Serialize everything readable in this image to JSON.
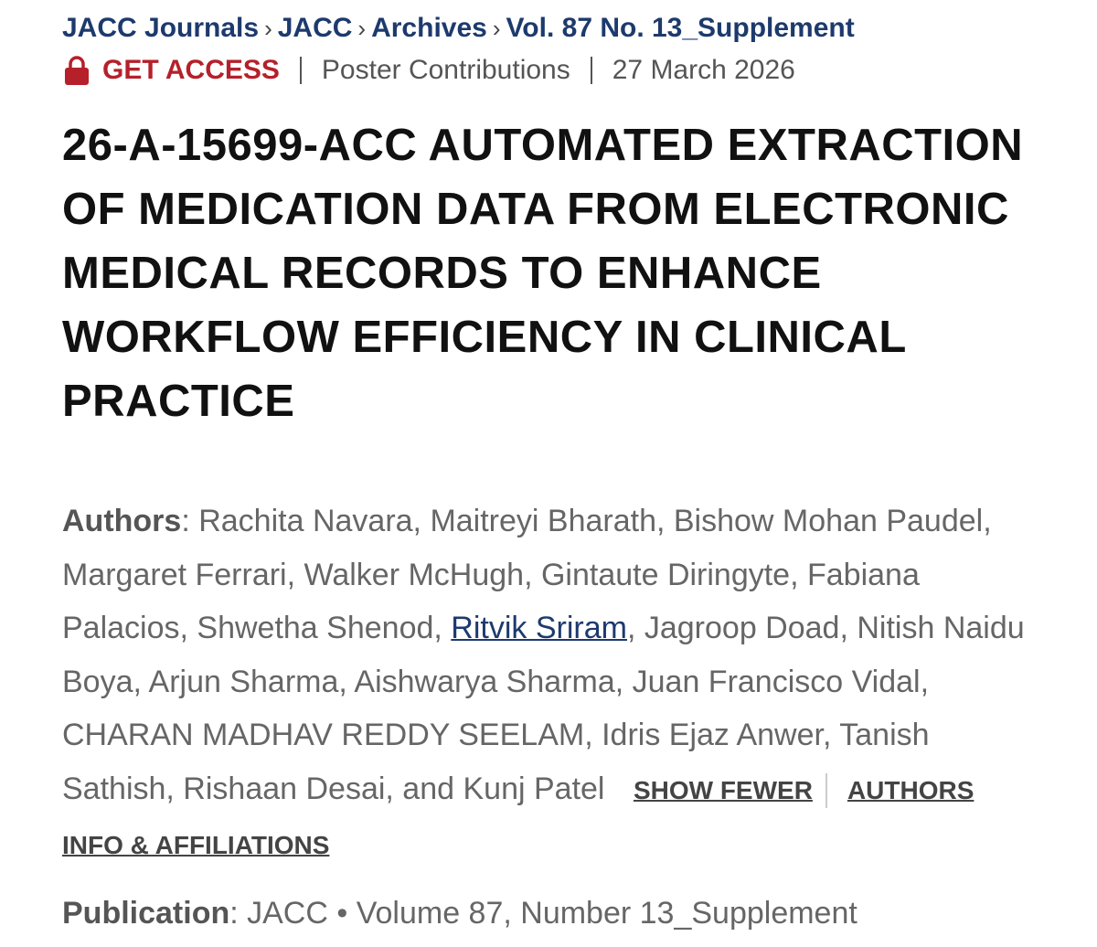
{
  "breadcrumb": {
    "items": [
      "JACC Journals",
      "JACC",
      "Archives",
      "Vol. 87 No. 13_Supplement"
    ],
    "separator": "›"
  },
  "meta": {
    "access": "GET ACCESS",
    "section": "Poster Contributions",
    "date": "27 March 2026"
  },
  "title": "26-A-15699-ACC AUTOMATED EXTRACTION OF MEDICATION DATA FROM ELECTRONIC MEDICAL RECORDS TO ENHANCE WORKFLOW EFFICIENCY IN CLINICAL PRACTICE",
  "authors": {
    "label": "Authors",
    "text_before": ": Rachita Navara, Maitreyi Bharath, Bishow Mohan Paudel, Margaret Ferrari, Walker McHugh, Gintaute Diringyte, Fabiana Palacios, Shwetha Shenod, ",
    "linked_author": "Ritvik Sriram",
    "text_after": ", Jagroop Doad, Nitish Naidu Boya, Arjun Sharma, Aishwarya Sharma, Juan Francisco Vidal, CHARAN MADHAV REDDY SEELAM, Idris Ejaz Anwer, Tanish Sathish, Rishaan Desai, and Kunj Patel",
    "show_fewer": "SHOW FEWER",
    "info": "AUTHORS INFO & AFFILIATIONS"
  },
  "publication": {
    "label": "Publication",
    "text": ": JACC • Volume 87, Number 13_Supplement"
  }
}
